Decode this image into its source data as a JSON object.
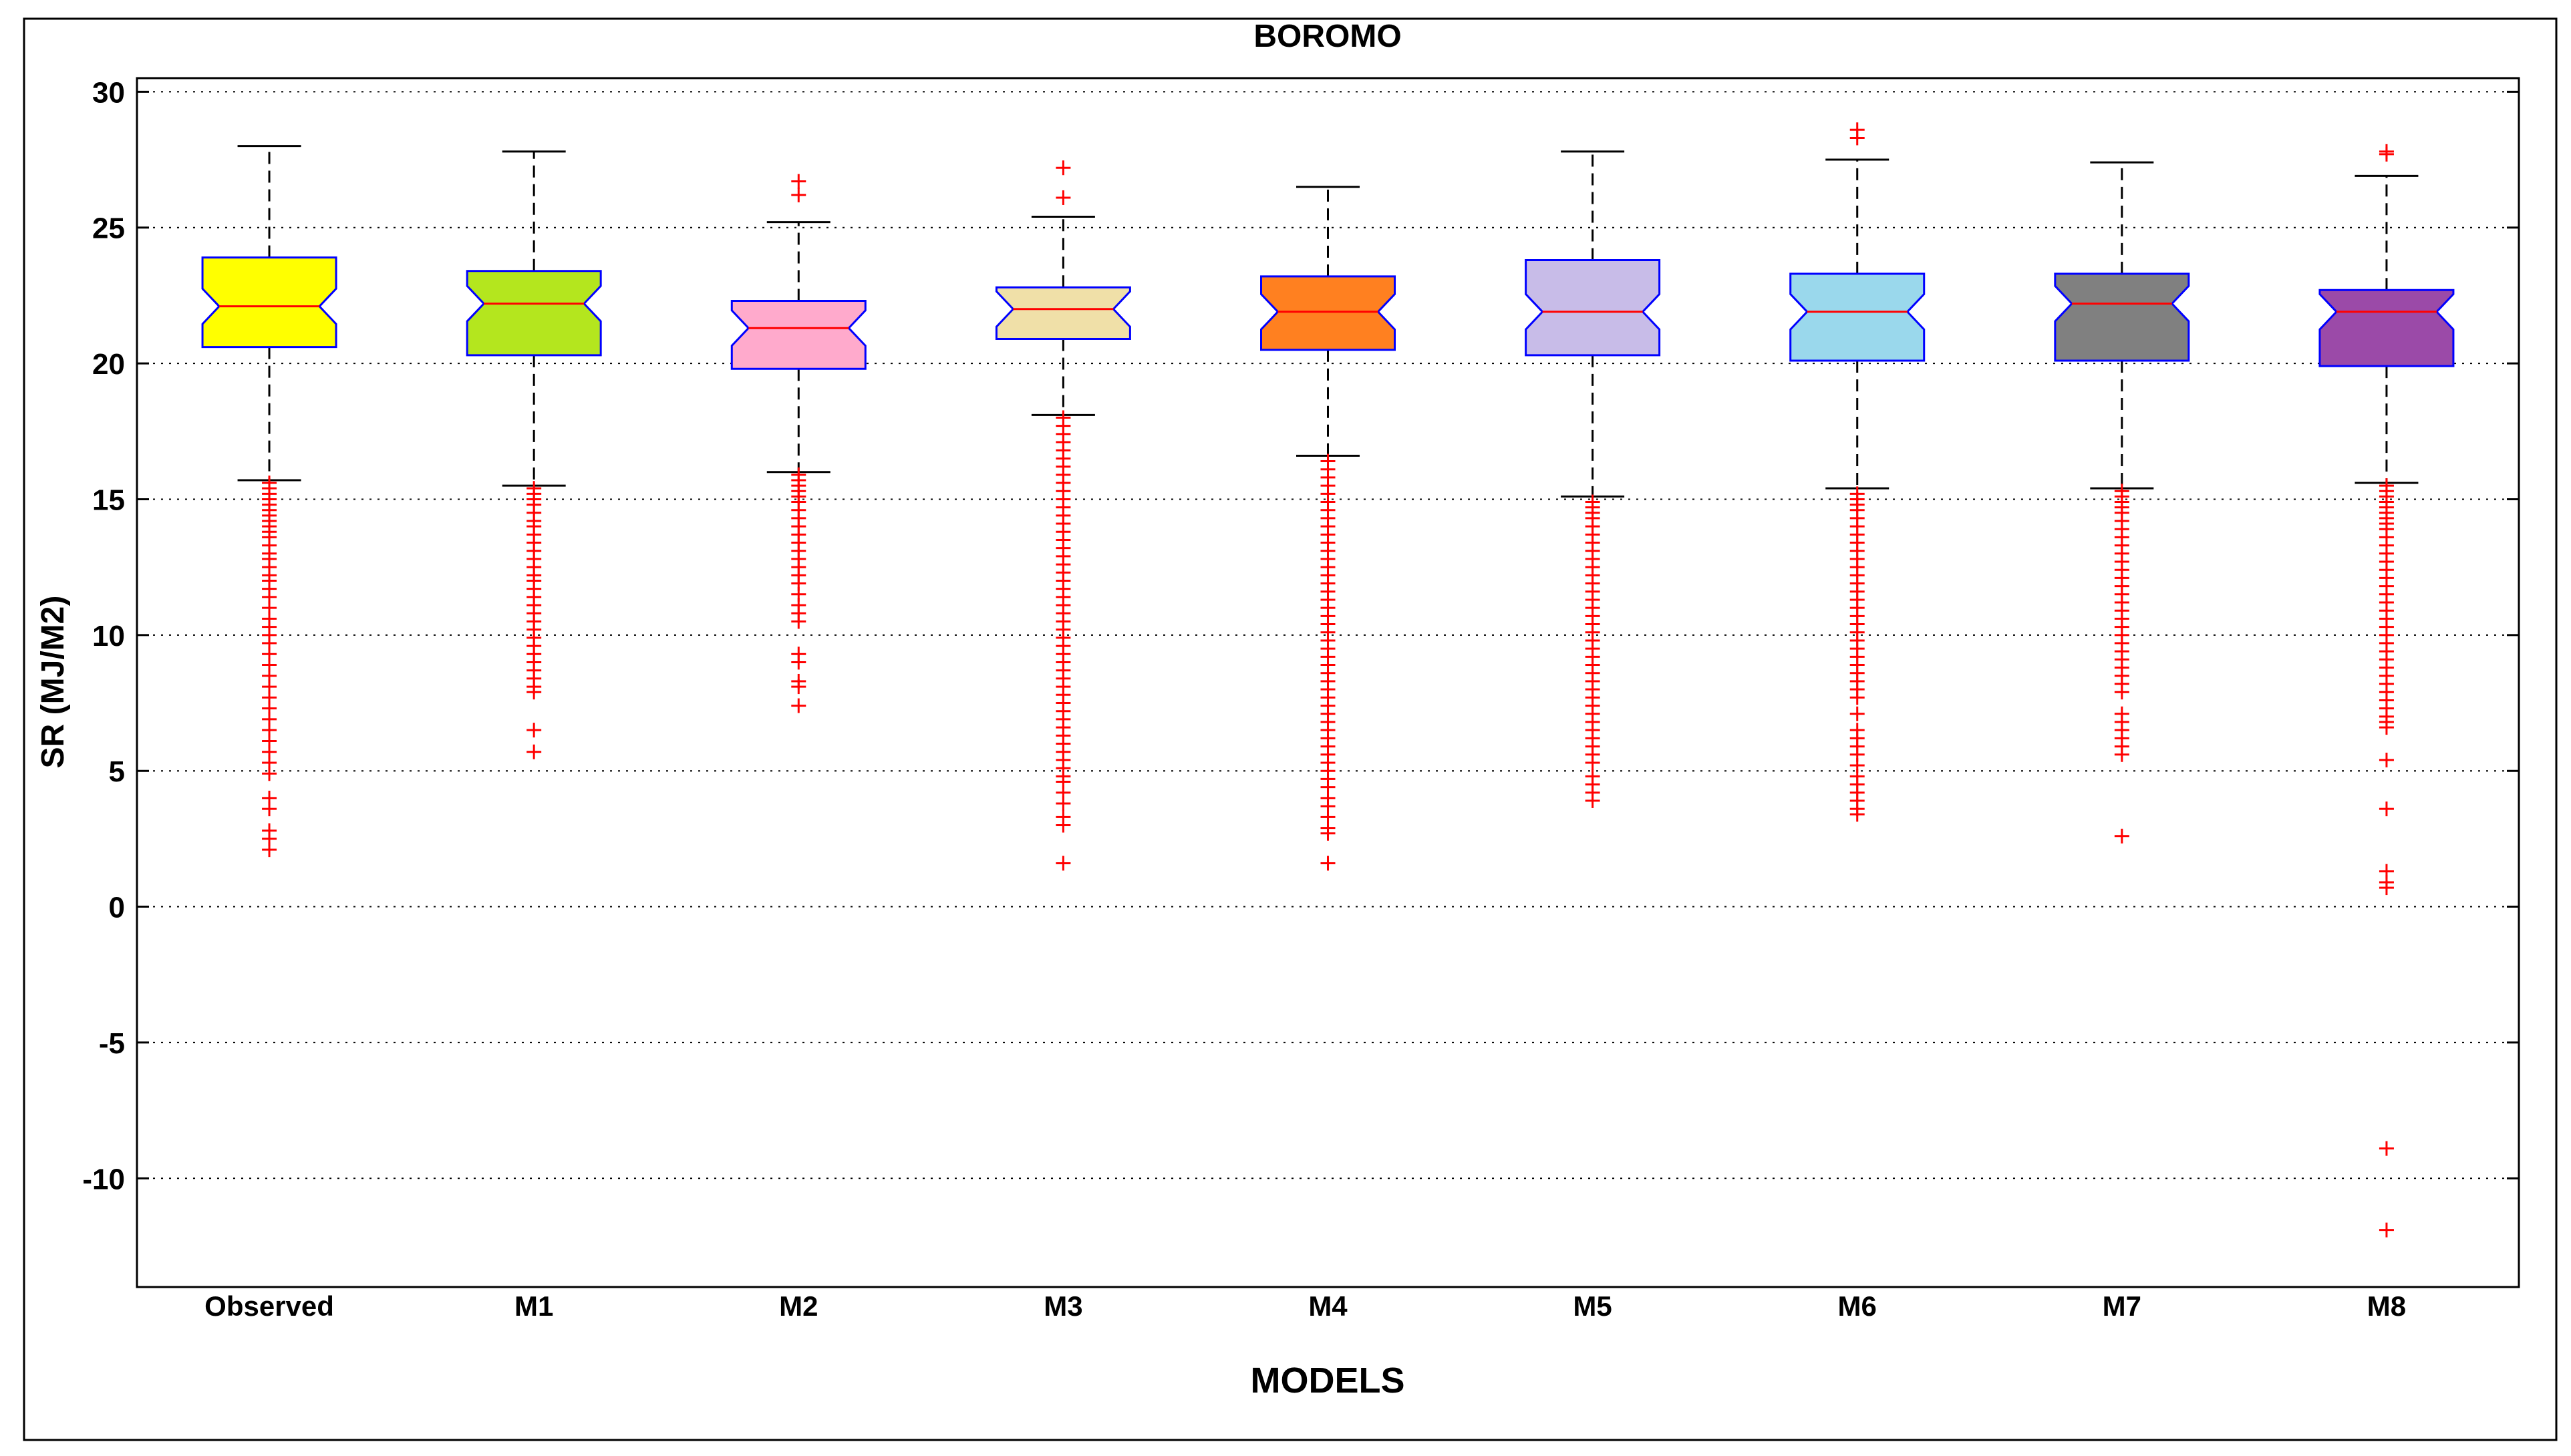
{
  "chart_data": {
    "type": "boxplot",
    "title": "BOROMO",
    "xlabel": "MODELS",
    "ylabel": "SR (MJ/M2)",
    "ylim": [
      -14,
      30.5
    ],
    "yticks": [
      30,
      25,
      20,
      15,
      10,
      5,
      0,
      -5,
      -10
    ],
    "ytick_labels": [
      "30",
      "25",
      "20",
      "15",
      "10",
      "5",
      "0",
      "-5",
      "-10"
    ],
    "grid": true,
    "notched": true,
    "outlier_color": "#ff0000",
    "median_color": "#ff0000",
    "box_edge_color": "#0000ff",
    "categories": [
      "Observed",
      "M1",
      "M2",
      "M3",
      "M4",
      "M5",
      "M6",
      "M7",
      "M8"
    ],
    "boxes": [
      {
        "name": "Observed",
        "color": "#ffff00",
        "whisker_low": 15.7,
        "q1": 20.6,
        "median": 22.1,
        "q3": 23.9,
        "whisker_high": 28.0,
        "outliers": [
          15.6,
          15.4,
          15.2,
          15.0,
          14.8,
          14.6,
          14.4,
          14.2,
          14.0,
          13.8,
          13.6,
          13.3,
          13.0,
          12.8,
          12.5,
          12.2,
          12.0,
          11.7,
          11.4,
          11.0,
          10.6,
          10.3,
          10.0,
          9.7,
          9.3,
          8.9,
          8.5,
          8.1,
          7.7,
          7.3,
          6.9,
          6.5,
          6.1,
          5.7,
          5.3,
          4.9,
          4.0,
          3.6,
          2.8,
          2.5,
          2.1
        ]
      },
      {
        "name": "M1",
        "color": "#b4e61e",
        "whisker_low": 15.5,
        "q1": 20.3,
        "median": 22.2,
        "q3": 23.4,
        "whisker_high": 27.8,
        "outliers": [
          15.4,
          15.2,
          15.0,
          14.8,
          14.5,
          14.2,
          14.0,
          13.7,
          13.4,
          13.1,
          12.8,
          12.5,
          12.2,
          12.0,
          11.7,
          11.4,
          11.1,
          10.8,
          10.5,
          10.2,
          9.9,
          9.6,
          9.3,
          9.0,
          8.7,
          8.4,
          8.1,
          7.9,
          6.5,
          5.7
        ]
      },
      {
        "name": "M2",
        "color": "#ffaacc",
        "whisker_low": 16.0,
        "q1": 19.8,
        "median": 21.3,
        "q3": 22.3,
        "whisker_high": 25.2,
        "outliers": [
          26.7,
          26.2,
          15.9,
          15.7,
          15.5,
          15.3,
          15.1,
          14.9,
          14.6,
          14.3,
          14.0,
          13.7,
          13.4,
          13.1,
          12.8,
          12.5,
          12.2,
          11.9,
          11.5,
          11.1,
          10.8,
          10.5,
          9.3,
          9.0,
          8.3,
          8.1,
          7.4
        ]
      },
      {
        "name": "M3",
        "color": "#f0e0a8",
        "whisker_low": 18.1,
        "q1": 20.9,
        "median": 22.0,
        "q3": 22.8,
        "whisker_high": 25.4,
        "outliers": [
          27.2,
          26.1,
          18.0,
          17.7,
          17.4,
          17.1,
          16.8,
          16.5,
          16.2,
          15.9,
          15.6,
          15.3,
          15.0,
          14.7,
          14.4,
          14.1,
          13.8,
          13.5,
          13.2,
          12.9,
          12.6,
          12.3,
          12.0,
          11.7,
          11.4,
          11.1,
          10.8,
          10.5,
          10.2,
          9.9,
          9.6,
          9.3,
          9.0,
          8.7,
          8.4,
          8.1,
          7.8,
          7.5,
          7.2,
          6.9,
          6.6,
          6.3,
          6.0,
          5.7,
          5.4,
          5.1,
          4.8,
          4.6,
          4.2,
          3.8,
          3.3,
          3.0,
          1.6
        ]
      },
      {
        "name": "M4",
        "color": "#ff8020",
        "whisker_low": 16.6,
        "q1": 20.5,
        "median": 21.9,
        "q3": 23.2,
        "whisker_high": 26.5,
        "outliers": [
          16.4,
          16.1,
          15.8,
          15.5,
          15.2,
          14.9,
          14.6,
          14.3,
          14.0,
          13.7,
          13.4,
          13.1,
          12.8,
          12.5,
          12.2,
          11.9,
          11.6,
          11.3,
          11.0,
          10.7,
          10.4,
          10.1,
          9.8,
          9.5,
          9.2,
          8.9,
          8.6,
          8.3,
          8.0,
          7.7,
          7.4,
          7.1,
          6.8,
          6.5,
          6.2,
          5.9,
          5.6,
          5.3,
          5.0,
          4.7,
          4.4,
          4.0,
          3.7,
          3.3,
          2.9,
          2.7,
          1.6
        ]
      },
      {
        "name": "M5",
        "color": "#c8bce8",
        "whisker_low": 15.1,
        "q1": 20.3,
        "median": 21.9,
        "q3": 23.8,
        "whisker_high": 27.8,
        "outliers": [
          14.9,
          14.7,
          14.5,
          14.3,
          14.0,
          13.7,
          13.4,
          13.1,
          12.8,
          12.5,
          12.2,
          11.9,
          11.6,
          11.3,
          11.0,
          10.7,
          10.4,
          10.1,
          9.8,
          9.5,
          9.2,
          8.9,
          8.6,
          8.3,
          8.0,
          7.7,
          7.4,
          7.1,
          6.8,
          6.5,
          6.2,
          5.9,
          5.6,
          5.3,
          4.8,
          4.5,
          4.2,
          3.9
        ]
      },
      {
        "name": "M6",
        "color": "#9ad8ec",
        "whisker_low": 15.4,
        "q1": 20.1,
        "median": 21.9,
        "q3": 23.3,
        "whisker_high": 27.5,
        "outliers": [
          28.6,
          28.3,
          15.2,
          15.0,
          14.8,
          14.6,
          14.3,
          14.0,
          13.7,
          13.4,
          13.1,
          12.8,
          12.5,
          12.2,
          11.9,
          11.6,
          11.3,
          11.0,
          10.7,
          10.4,
          10.1,
          9.8,
          9.5,
          9.2,
          8.9,
          8.6,
          8.3,
          8.0,
          7.7,
          7.1,
          6.5,
          6.2,
          5.9,
          5.6,
          5.2,
          4.8,
          4.5,
          4.2,
          3.9,
          3.6,
          3.4
        ]
      },
      {
        "name": "M7",
        "color": "#808080",
        "whisker_low": 15.4,
        "q1": 20.1,
        "median": 22.2,
        "q3": 23.3,
        "whisker_high": 27.4,
        "outliers": [
          15.3,
          15.1,
          14.9,
          14.7,
          14.5,
          14.2,
          13.9,
          13.6,
          13.3,
          13.0,
          12.7,
          12.4,
          12.1,
          11.8,
          11.5,
          11.2,
          10.9,
          10.6,
          10.3,
          10.0,
          9.7,
          9.4,
          9.1,
          8.8,
          8.5,
          8.2,
          7.9,
          7.1,
          6.8,
          6.5,
          6.2,
          5.9,
          5.6,
          2.6
        ]
      },
      {
        "name": "M8",
        "color": "#9b4aa8",
        "whisker_low": 15.6,
        "q1": 19.9,
        "median": 21.9,
        "q3": 22.7,
        "whisker_high": 26.9,
        "outliers": [
          27.8,
          27.7,
          15.5,
          15.3,
          15.1,
          14.9,
          14.7,
          14.5,
          14.3,
          14.1,
          13.9,
          13.6,
          13.3,
          13.0,
          12.7,
          12.4,
          12.1,
          11.8,
          11.5,
          11.2,
          10.9,
          10.6,
          10.3,
          10.0,
          9.7,
          9.4,
          9.1,
          8.8,
          8.5,
          8.2,
          7.9,
          7.6,
          7.3,
          7.0,
          6.8,
          6.6,
          5.4,
          3.6,
          1.3,
          0.9,
          0.7,
          -8.9,
          -11.9
        ]
      }
    ]
  }
}
